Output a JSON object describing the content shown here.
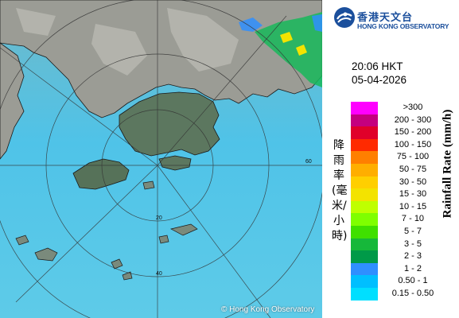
{
  "map": {
    "copyright": "© Hong Kong Observatory",
    "range_labels": [
      "20",
      "40",
      "60"
    ],
    "colors": {
      "sea": "#4fc3e8",
      "land": "#9a9a93",
      "hk_land": "#55705a",
      "range_ring": "#3a3a3a",
      "coast": "#1a1a1a"
    }
  },
  "org": {
    "name_zh": "香港天文台",
    "name_en": "HONG KONG OBSERVATORY"
  },
  "timestamp": {
    "time": "20:06 HKT",
    "date": "05-04-2026"
  },
  "legend": {
    "title_zh": "降雨率(毫米/小時)",
    "title_en": "Rainfall Rate (mm/h)",
    "items": [
      {
        "label": ">300",
        "color": "#ff00ff"
      },
      {
        "label": "200 - 300",
        "color": "#c4007f"
      },
      {
        "label": "150 - 200",
        "color": "#e0002a"
      },
      {
        "label": "100 - 150",
        "color": "#ff2a00"
      },
      {
        "label": "75 - 100",
        "color": "#ff7f00"
      },
      {
        "label": "50 - 75",
        "color": "#ffae00"
      },
      {
        "label": "30 - 50",
        "color": "#ffcf00"
      },
      {
        "label": "15 - 30",
        "color": "#f3e300"
      },
      {
        "label": "10 - 15",
        "color": "#bfff00"
      },
      {
        "label": "7 - 10",
        "color": "#7fff00"
      },
      {
        "label": "5 - 7",
        "color": "#3fe000"
      },
      {
        "label": "3 - 5",
        "color": "#16b83a"
      },
      {
        "label": "2 - 3",
        "color": "#009a48"
      },
      {
        "label": "1 - 2",
        "color": "#2f8fff"
      },
      {
        "label": "0.50 - 1",
        "color": "#00bfff"
      },
      {
        "label": "0.15 - 0.50",
        "color": "#00dfff"
      }
    ]
  }
}
